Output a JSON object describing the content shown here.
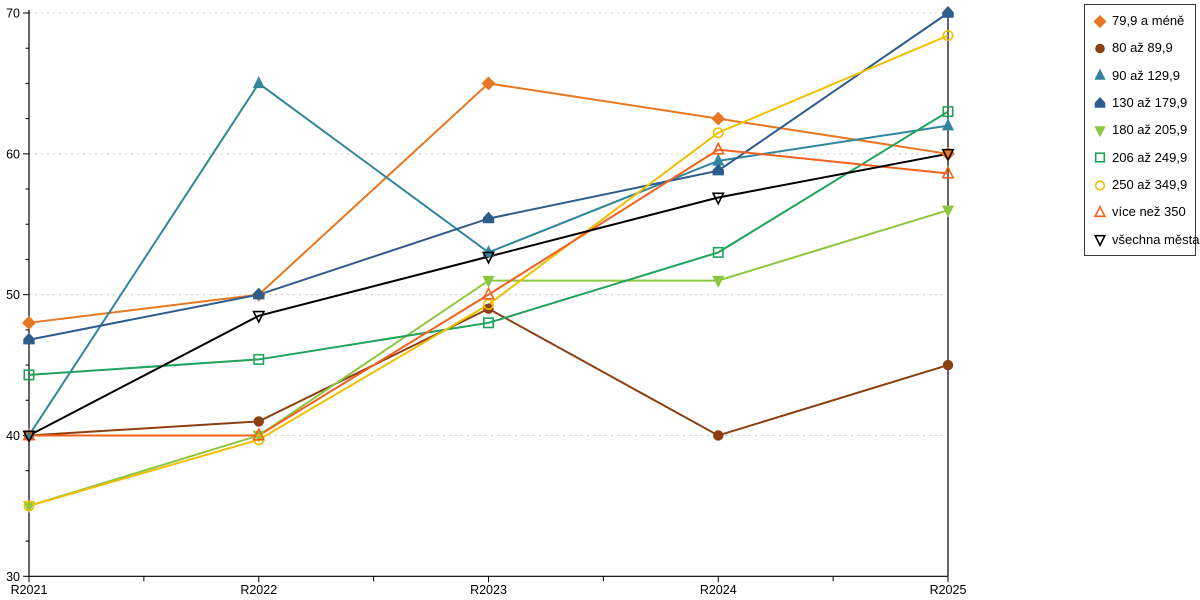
{
  "chart_data": {
    "type": "line",
    "title": "",
    "xlabel": "",
    "ylabel": "",
    "x_categories": [
      "R2021",
      "R2022",
      "R2023",
      "R2024",
      "R2025"
    ],
    "y_axis": {
      "min": 30,
      "max": 70,
      "major_tick_step": 10,
      "minor_tick_step": 2.5,
      "tick_labels": [
        "30",
        "40",
        "50",
        "60",
        "70"
      ]
    },
    "grid": {
      "horizontal_dashed_at": [
        40,
        50,
        60,
        70
      ],
      "color": "#c9c9c9"
    },
    "legend_position": "right",
    "series": [
      {
        "name": "79,9 a méně",
        "color": "#E87722",
        "marker": "diamond",
        "marker_fill": "filled",
        "values": [
          48,
          50,
          65,
          62.5,
          60
        ]
      },
      {
        "name": "80 až 89,9",
        "color": "#8C3F10",
        "marker": "circle",
        "marker_fill": "filled",
        "values": [
          40,
          41,
          49,
          40,
          45
        ]
      },
      {
        "name": "90 až 129,9",
        "color": "#31859C",
        "marker": "triangle-up",
        "marker_fill": "filled",
        "values": [
          40,
          65,
          53,
          59.5,
          62
        ]
      },
      {
        "name": "130 až 179,9",
        "color": "#2E5C8C",
        "marker": "pentagon",
        "marker_fill": "filled",
        "values": [
          46.8,
          50,
          55.4,
          58.8,
          70
        ]
      },
      {
        "name": "180 až 205,9",
        "color": "#8DC63F",
        "marker": "triangle-down",
        "marker_fill": "filled",
        "values": [
          35,
          40,
          51,
          51,
          56
        ]
      },
      {
        "name": "206 až 249,9",
        "color": "#1FA35C",
        "marker": "square",
        "marker_fill": "hollow",
        "values": [
          44.3,
          45.4,
          48,
          53,
          63
        ]
      },
      {
        "name": "250 až 349,9",
        "color": "#EFC000",
        "marker": "circle",
        "marker_fill": "hollow",
        "values": [
          35,
          39.7,
          49.3,
          61.5,
          68.4
        ]
      },
      {
        "name": "více než 350",
        "color": "#F4611E",
        "marker": "triangle-up",
        "marker_fill": "hollow",
        "values": [
          40,
          40,
          50,
          60.3,
          58.6
        ]
      },
      {
        "name": "všechna města",
        "color": "#000000",
        "marker": "triangle-down",
        "marker_fill": "hollow",
        "values": [
          40,
          48.5,
          52.7,
          56.9,
          60
        ]
      }
    ]
  }
}
